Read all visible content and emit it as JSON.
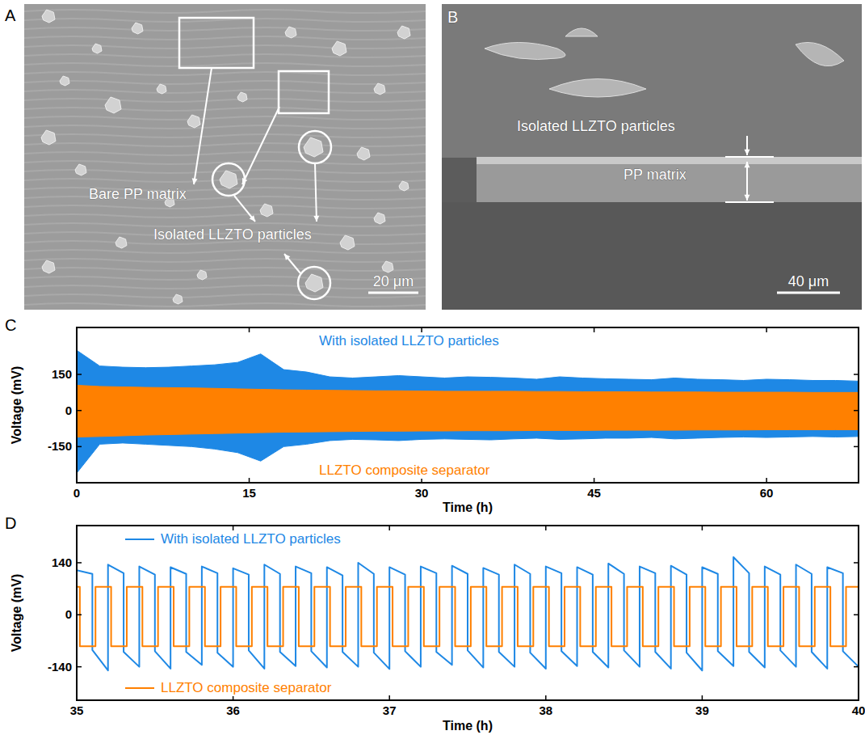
{
  "images": [
    {
      "panel_label": "A",
      "labels": [
        "Bare PP matrix",
        "Isolated LLZTO particles"
      ],
      "scale_bar": "20 μm"
    },
    {
      "panel_label": "B",
      "labels": [
        "Isolated LLZTO particles",
        "PP matrix"
      ],
      "scale_bar": "40 μm"
    }
  ],
  "chart_data": [
    {
      "panel_label": "C",
      "type": "band",
      "x_label": "Time (h)",
      "y_label": "Voltage (mV)",
      "x": [
        0,
        2,
        4,
        6,
        8,
        10,
        12,
        14,
        16,
        18,
        20,
        22,
        24,
        26,
        28,
        30,
        32,
        34,
        36,
        38,
        40,
        42,
        44,
        46,
        48,
        50,
        52,
        54,
        56,
        58,
        60,
        62,
        64,
        66,
        68
      ],
      "xlim": [
        0,
        68
      ],
      "xticks": [
        0,
        15,
        30,
        45,
        60
      ],
      "ylim": [
        -300,
        345
      ],
      "yticks": [
        -150,
        0,
        150
      ],
      "legend": "inside",
      "series": [
        {
          "name": "With isolated LLZTO particles",
          "color": "#1e88e5",
          "values": [
            250,
            185,
            180,
            178,
            180,
            185,
            190,
            200,
            235,
            170,
            160,
            140,
            135,
            140,
            145,
            140,
            135,
            140,
            138,
            135,
            130,
            140,
            135,
            132,
            130,
            128,
            135,
            130,
            128,
            125,
            130,
            128,
            125,
            125,
            122
          ],
          "lower": [
            -260,
            -140,
            -135,
            -140,
            -145,
            -150,
            -160,
            -175,
            -210,
            -150,
            -140,
            -125,
            -120,
            -122,
            -125,
            -120,
            -118,
            -120,
            -122,
            -118,
            -115,
            -120,
            -118,
            -115,
            -115,
            -112,
            -118,
            -115,
            -112,
            -110,
            -112,
            -110,
            -108,
            -110,
            -108
          ]
        },
        {
          "name": "LLZTO composite separator",
          "color": "#ff8000",
          "values": [
            105,
            100,
            98,
            96,
            95,
            94,
            92,
            90,
            88,
            86,
            85,
            84,
            83,
            82,
            82,
            81,
            80,
            80,
            80,
            80,
            79,
            79,
            78,
            78,
            78,
            77,
            77,
            77,
            76,
            76,
            76,
            76,
            75,
            75,
            75
          ],
          "lower": [
            -110,
            -108,
            -105,
            -102,
            -100,
            -98,
            -96,
            -94,
            -92,
            -90,
            -89,
            -88,
            -87,
            -86,
            -86,
            -85,
            -85,
            -84,
            -84,
            -84,
            -83,
            -83,
            -83,
            -82,
            -82,
            -82,
            -82,
            -81,
            -81,
            -81,
            -80,
            -80,
            -80,
            -80,
            -80
          ]
        }
      ]
    },
    {
      "panel_label": "D",
      "type": "line",
      "x_label": "Time (h)",
      "y_label": "Voltage (mV)",
      "xlim": [
        35,
        40
      ],
      "xticks": [
        35,
        36,
        37,
        38,
        39,
        40
      ],
      "ylim": [
        -230,
        240
      ],
      "yticks": [
        -140,
        0,
        140
      ],
      "legend": "inside",
      "series": [
        {
          "name": "With isolated LLZTO particles",
          "color": "#1e88e5",
          "x": [
            35,
            35.1,
            35.1,
            35.2,
            35.2,
            35.3,
            35.3,
            35.4,
            35.4,
            35.5,
            35.5,
            35.6,
            35.6,
            35.7,
            35.7,
            35.8,
            35.8,
            35.9,
            35.9,
            36,
            36,
            36.1,
            36.1,
            36.2,
            36.2,
            36.3,
            36.3,
            36.4,
            36.4,
            36.5,
            36.5,
            36.6,
            36.6,
            36.7,
            36.7,
            36.8,
            36.8,
            36.9,
            36.9,
            37,
            37,
            37.1,
            37.1,
            37.2,
            37.2,
            37.3,
            37.3,
            37.4,
            37.4,
            37.5,
            37.5,
            37.6,
            37.6,
            37.7,
            37.7,
            37.8,
            37.8,
            37.9,
            37.9,
            38,
            38,
            38.1,
            38.1,
            38.2,
            38.2,
            38.3,
            38.3,
            38.4,
            38.4,
            38.5,
            38.5,
            38.6,
            38.6,
            38.7,
            38.7,
            38.8,
            38.8,
            38.9,
            38.9,
            39,
            39,
            39.1,
            39.1,
            39.2,
            39.2,
            39.3,
            39.3,
            39.4,
            39.4,
            39.5,
            39.5,
            39.6,
            39.6,
            39.7,
            39.7,
            39.8,
            39.8,
            39.9,
            39.9,
            40
          ],
          "values": [
            120,
            110,
            -95,
            -150,
            135,
            112,
            -100,
            -140,
            130,
            108,
            -98,
            -145,
            128,
            110,
            -100,
            -135,
            130,
            112,
            -102,
            -140,
            125,
            108,
            -96,
            -145,
            135,
            110,
            -100,
            -138,
            130,
            112,
            -98,
            -142,
            128,
            106,
            -100,
            -140,
            140,
            110,
            -102,
            -146,
            128,
            108,
            -98,
            -140,
            130,
            112,
            -100,
            -135,
            132,
            110,
            -96,
            -142,
            126,
            108,
            -100,
            -140,
            135,
            110,
            -102,
            -145,
            130,
            112,
            -98,
            -138,
            128,
            108,
            -100,
            -142,
            138,
            110,
            -96,
            -140,
            130,
            112,
            -100,
            -145,
            132,
            108,
            -102,
            -150,
            128,
            110,
            -98,
            -138,
            155,
            112,
            -100,
            -142,
            130,
            108,
            -96,
            -140,
            135,
            110,
            -100,
            -145,
            128,
            112,
            -98,
            -140
          ]
        },
        {
          "name": "LLZTO composite separator",
          "color": "#ff8000",
          "x": [
            35,
            35.02,
            35.02,
            35.12,
            35.12,
            35.22,
            35.22,
            35.32,
            35.32,
            35.42,
            35.42,
            35.52,
            35.52,
            35.62,
            35.62,
            35.72,
            35.72,
            35.82,
            35.82,
            35.92,
            35.92,
            36.02,
            36.02,
            36.12,
            36.12,
            36.22,
            36.22,
            36.32,
            36.32,
            36.42,
            36.42,
            36.52,
            36.52,
            36.62,
            36.62,
            36.72,
            36.72,
            36.82,
            36.82,
            36.92,
            36.92,
            37.02,
            37.02,
            37.12,
            37.12,
            37.22,
            37.22,
            37.32,
            37.32,
            37.42,
            37.42,
            37.52,
            37.52,
            37.62,
            37.62,
            37.72,
            37.72,
            37.82,
            37.82,
            37.92,
            37.92,
            38.02,
            38.02,
            38.12,
            38.12,
            38.22,
            38.22,
            38.32,
            38.32,
            38.42,
            38.42,
            38.52,
            38.52,
            38.62,
            38.62,
            38.72,
            38.72,
            38.82,
            38.82,
            38.92,
            38.92,
            39.02,
            39.02,
            39.12,
            39.12,
            39.22,
            39.22,
            39.32,
            39.32,
            39.42,
            39.42,
            39.52,
            39.52,
            39.62,
            39.62,
            39.72,
            39.72,
            39.82,
            39.82,
            39.92,
            39.92,
            40.02
          ],
          "values": [
            75,
            75,
            -85,
            -85,
            75,
            75,
            -85,
            -85,
            75,
            75,
            -85,
            -85,
            75,
            75,
            -85,
            -85,
            75,
            75,
            -85,
            -85,
            75,
            75,
            -85,
            -85,
            75,
            75,
            -85,
            -85,
            75,
            75,
            -85,
            -85,
            75,
            75,
            -85,
            -85,
            75,
            75,
            -85,
            -85,
            75,
            75,
            -85,
            -85,
            75,
            75,
            -85,
            -85,
            75,
            75,
            -85,
            -85,
            75,
            75,
            -85,
            -85,
            75,
            75,
            -85,
            -85,
            75,
            75,
            -85,
            -85,
            75,
            75,
            -85,
            -85,
            75,
            75,
            -85,
            -85,
            75,
            75,
            -85,
            -85,
            75,
            75,
            -85,
            -85,
            75,
            75,
            -85,
            -85,
            75,
            75,
            -85,
            -85,
            75,
            75,
            -85,
            -85,
            75,
            75,
            -85,
            -85,
            75,
            75,
            -85,
            -85,
            75,
            75
          ]
        }
      ]
    }
  ]
}
